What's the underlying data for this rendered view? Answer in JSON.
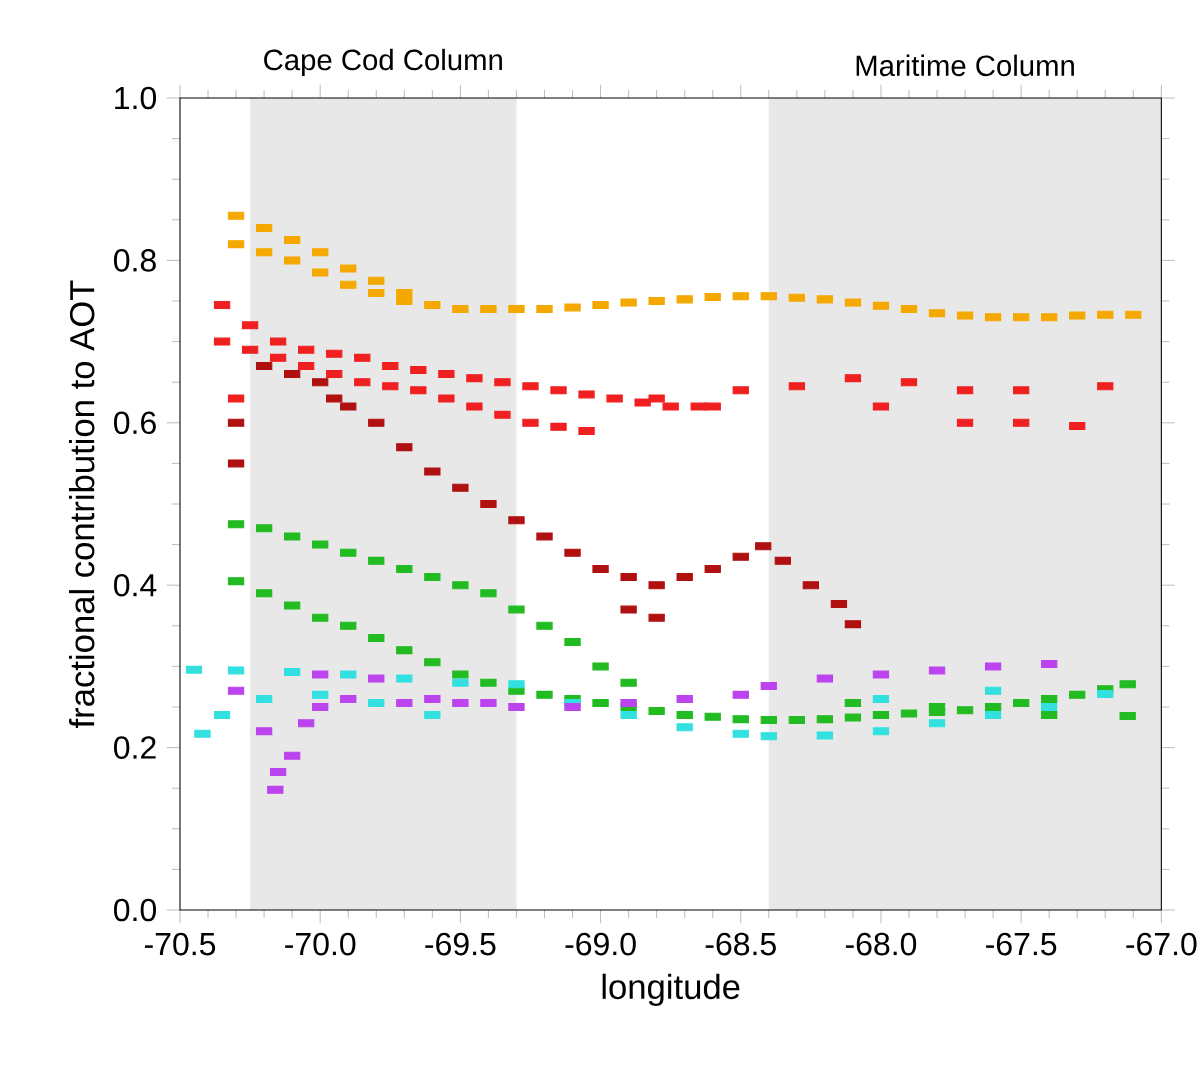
{
  "chart_data": {
    "type": "scatter",
    "xlabel": "longitude",
    "ylabel": "fractional contribution to AOT",
    "marker": "square",
    "xlim": [
      -70.5,
      -67.0
    ],
    "ylim": [
      0.0,
      1.0
    ],
    "xticks": [
      -70.5,
      {
        "value": -70.0,
        "label": "-70.0"
      },
      -69.5,
      {
        "value": -69.0,
        "label": "-69.0"
      },
      -68.5,
      {
        "value": -68.0,
        "label": "-68.0"
      },
      -67.5,
      {
        "value": -67.0,
        "label": "-67.0"
      }
    ],
    "yticks": [
      {
        "value": 0.0,
        "label": "0.0"
      },
      0.2,
      0.4,
      0.6,
      0.8,
      {
        "value": 1.0,
        "label": "1.0"
      }
    ],
    "bands": [
      {
        "axis": "x",
        "from": -70.25,
        "to": -69.3,
        "label": "Cape Cod Column",
        "color": "#e8e8e8"
      },
      {
        "axis": "x",
        "from": -68.4,
        "to": -67.0,
        "label": "Maritime Column",
        "color": "#e8e8e8"
      }
    ],
    "series": [
      {
        "color": "#f5a800",
        "x": [
          -70.3,
          -70.2,
          -70.1,
          -70.0,
          -69.9,
          -69.8,
          -69.7,
          -70.3,
          -70.2,
          -70.1,
          -70.0,
          -69.9,
          -69.8,
          -69.7,
          -69.6,
          -69.5,
          -69.4,
          -69.3,
          -69.2,
          -69.1,
          -69.0,
          -68.9,
          -68.8,
          -68.7,
          -68.6,
          -68.5,
          -68.4,
          -68.3,
          -68.2,
          -68.1,
          -68.0,
          -67.9,
          -67.8,
          -67.7,
          -67.6,
          -67.5,
          -67.4,
          -67.3,
          -67.2,
          -67.1
        ],
        "values": [
          0.855,
          0.84,
          0.825,
          0.81,
          0.79,
          0.775,
          0.76,
          0.82,
          0.81,
          0.8,
          0.785,
          0.77,
          0.76,
          0.75,
          0.745,
          0.74,
          0.74,
          0.74,
          0.74,
          0.742,
          0.745,
          0.748,
          0.75,
          0.752,
          0.755,
          0.756,
          0.756,
          0.754,
          0.752,
          0.748,
          0.744,
          0.74,
          0.735,
          0.732,
          0.73,
          0.73,
          0.73,
          0.732,
          0.733,
          0.733
        ]
      },
      {
        "color": "#f02020",
        "x": [
          -70.35,
          -70.25,
          -70.15,
          -70.05,
          -69.95,
          -69.85,
          -69.75,
          -69.65,
          -69.55,
          -69.45,
          -69.35,
          -69.25,
          -69.15,
          -69.05,
          -68.95,
          -68.85,
          -68.75,
          -68.65,
          -70.35,
          -70.25,
          -70.15,
          -70.05,
          -69.95,
          -69.85,
          -69.75,
          -69.65,
          -69.55,
          -69.45,
          -69.35,
          -69.25,
          -69.15,
          -69.05,
          -68.5,
          -68.3,
          -68.1,
          -67.9,
          -67.7,
          -67.5,
          -67.2,
          -68.0,
          -67.7,
          -67.5,
          -67.3,
          -68.6,
          -68.8,
          -70.3
        ],
        "values": [
          0.745,
          0.72,
          0.7,
          0.69,
          0.685,
          0.68,
          0.67,
          0.665,
          0.66,
          0.655,
          0.65,
          0.645,
          0.64,
          0.635,
          0.63,
          0.625,
          0.62,
          0.62,
          0.7,
          0.69,
          0.68,
          0.67,
          0.66,
          0.65,
          0.645,
          0.64,
          0.63,
          0.62,
          0.61,
          0.6,
          0.595,
          0.59,
          0.64,
          0.645,
          0.655,
          0.65,
          0.64,
          0.64,
          0.645,
          0.62,
          0.6,
          0.6,
          0.596,
          0.62,
          0.63,
          0.63
        ]
      },
      {
        "color": "#b01010",
        "x": [
          -70.3,
          -70.3,
          -70.2,
          -70.1,
          -70.0,
          -69.95,
          -69.9,
          -69.8,
          -69.7,
          -69.6,
          -69.5,
          -69.4,
          -69.3,
          -69.2,
          -69.1,
          -69.0,
          -68.9,
          -68.8,
          -68.7,
          -68.6,
          -68.5,
          -68.42,
          -68.35,
          -68.25,
          -68.15,
          -68.1,
          -68.9,
          -68.8
        ],
        "values": [
          0.6,
          0.55,
          0.67,
          0.66,
          0.65,
          0.63,
          0.62,
          0.6,
          0.57,
          0.54,
          0.52,
          0.5,
          0.48,
          0.46,
          0.44,
          0.42,
          0.41,
          0.4,
          0.41,
          0.42,
          0.435,
          0.448,
          0.43,
          0.4,
          0.377,
          0.352,
          0.37,
          0.36
        ]
      },
      {
        "color": "#22bb22",
        "x": [
          -70.3,
          -70.2,
          -70.1,
          -70.0,
          -69.9,
          -69.8,
          -69.7,
          -69.6,
          -69.5,
          -69.4,
          -69.3,
          -69.2,
          -69.1,
          -69.0,
          -68.9,
          -70.3,
          -70.2,
          -70.1,
          -70.0,
          -69.9,
          -69.8,
          -69.7,
          -69.6,
          -69.5,
          -69.4,
          -69.3,
          -69.2,
          -69.1,
          -69.0,
          -68.9,
          -68.8,
          -68.7,
          -68.6,
          -68.5,
          -68.4,
          -68.3,
          -68.2,
          -68.1,
          -68.0,
          -67.9,
          -67.8,
          -67.7,
          -67.6,
          -67.5,
          -67.4,
          -67.3,
          -67.2,
          -67.12,
          -67.12,
          -67.4,
          -67.8,
          -68.1
        ],
        "values": [
          0.475,
          0.47,
          0.46,
          0.45,
          0.44,
          0.43,
          0.42,
          0.41,
          0.4,
          0.39,
          0.37,
          0.35,
          0.33,
          0.3,
          0.28,
          0.405,
          0.39,
          0.375,
          0.36,
          0.35,
          0.335,
          0.32,
          0.305,
          0.29,
          0.28,
          0.27,
          0.265,
          0.26,
          0.255,
          0.25,
          0.245,
          0.24,
          0.238,
          0.235,
          0.234,
          0.234,
          0.235,
          0.237,
          0.24,
          0.242,
          0.244,
          0.246,
          0.25,
          0.255,
          0.26,
          0.265,
          0.272,
          0.278,
          0.239,
          0.24,
          0.25,
          0.255
        ]
      },
      {
        "color": "#33e0e0",
        "x": [
          -70.45,
          -70.3,
          -70.1,
          -69.9,
          -69.7,
          -69.5,
          -69.3,
          -69.1,
          -68.9,
          -68.7,
          -68.5,
          -68.4,
          -68.2,
          -68.0,
          -67.8,
          -67.6,
          -67.4,
          -67.2,
          -70.42,
          -70.35,
          -70.2,
          -70.0,
          -69.8,
          -69.6,
          -68.0,
          -67.6
        ],
        "values": [
          0.296,
          0.295,
          0.293,
          0.29,
          0.285,
          0.28,
          0.278,
          0.255,
          0.24,
          0.225,
          0.217,
          0.214,
          0.215,
          0.22,
          0.23,
          0.24,
          0.25,
          0.266,
          0.217,
          0.24,
          0.26,
          0.265,
          0.255,
          0.24,
          0.26,
          0.27
        ]
      },
      {
        "color": "#bb44ee",
        "x": [
          -70.3,
          -70.2,
          -70.15,
          -70.16,
          -70.1,
          -70.05,
          -70.0,
          -69.9,
          -69.7,
          -69.6,
          -69.5,
          -69.4,
          -69.3,
          -69.1,
          -68.9,
          -68.7,
          -68.5,
          -68.4,
          -68.2,
          -68.0,
          -67.8,
          -67.6,
          -67.4,
          -70.0,
          -69.8
        ],
        "values": [
          0.27,
          0.22,
          0.17,
          0.148,
          0.19,
          0.23,
          0.25,
          0.26,
          0.255,
          0.26,
          0.255,
          0.255,
          0.25,
          0.25,
          0.255,
          0.26,
          0.265,
          0.276,
          0.285,
          0.29,
          0.295,
          0.3,
          0.303,
          0.29,
          0.285
        ]
      }
    ]
  }
}
